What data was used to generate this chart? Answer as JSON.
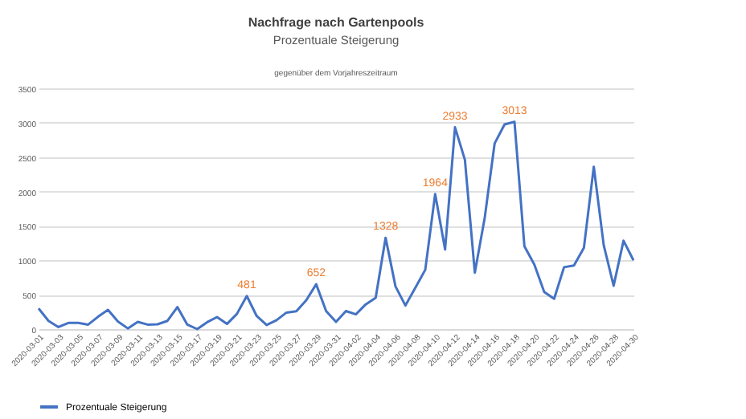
{
  "chart_data": {
    "type": "line",
    "title": "Nachfrage nach Gartenpools",
    "subtitle": "Prozentuale Steigerung",
    "annotations": [
      "gegenüber dem Vorjahreszeitraum"
    ],
    "x": [
      "2020-03-01",
      "2020-03-02",
      "2020-03-03",
      "2020-03-04",
      "2020-03-05",
      "2020-03-06",
      "2020-03-07",
      "2020-03-08",
      "2020-03-09",
      "2020-03-10",
      "2020-03-11",
      "2020-03-12",
      "2020-03-13",
      "2020-03-14",
      "2020-03-15",
      "2020-03-16",
      "2020-03-17",
      "2020-03-18",
      "2020-03-19",
      "2020-03-20",
      "2020-03-21",
      "2020-03-22",
      "2020-03-23",
      "2020-03-24",
      "2020-03-25",
      "2020-03-26",
      "2020-03-27",
      "2020-03-28",
      "2020-03-29",
      "2020-03-30",
      "2020-03-31",
      "2020-04-01",
      "2020-04-02",
      "2020-04-03",
      "2020-04-04",
      "2020-04-05",
      "2020-04-06",
      "2020-04-07",
      "2020-04-08",
      "2020-04-09",
      "2020-04-10",
      "2020-04-11",
      "2020-04-12",
      "2020-04-13",
      "2020-04-14",
      "2020-04-15",
      "2020-04-16",
      "2020-04-17",
      "2020-04-18",
      "2020-04-19",
      "2020-04-20",
      "2020-04-21",
      "2020-04-22",
      "2020-04-23",
      "2020-04-24",
      "2020-04-25",
      "2020-04-26",
      "2020-04-27",
      "2020-04-28",
      "2020-04-29",
      "2020-04-30"
    ],
    "series": [
      {
        "name": "Prozentuale Steigerung",
        "color": "#4472c4",
        "values": [
          300,
          120,
          30,
          90,
          90,
          65,
          180,
          280,
          110,
          10,
          105,
          65,
          70,
          120,
          320,
          65,
          0,
          100,
          175,
          75,
          220,
          481,
          190,
          60,
          130,
          240,
          260,
          420,
          652,
          263,
          104,
          263,
          215,
          360,
          455,
          1328,
          620,
          343,
          600,
          862,
          1964,
          1157,
          2933,
          2460,
          820,
          1620,
          2700,
          2975,
          3013,
          1205,
          940,
          540,
          440,
          900,
          925,
          1180,
          2360,
          1220,
          630,
          1285,
          1000
        ],
        "value_labels": [
          null,
          null,
          null,
          null,
          null,
          null,
          null,
          null,
          null,
          null,
          null,
          null,
          null,
          null,
          null,
          null,
          null,
          null,
          null,
          null,
          null,
          "481",
          null,
          null,
          null,
          null,
          null,
          null,
          "652",
          null,
          null,
          null,
          null,
          null,
          null,
          "1328",
          null,
          null,
          null,
          null,
          "1964",
          null,
          "2933",
          null,
          null,
          null,
          null,
          null,
          "3013",
          null,
          null,
          null,
          null,
          null,
          null,
          null,
          null,
          null,
          null,
          null,
          null
        ]
      }
    ],
    "xlim": [
      "2020-03-01",
      "2020-04-30"
    ],
    "xticks": [
      "2020-03-01",
      "2020-03-03",
      "2020-03-05",
      "2020-03-07",
      "2020-03-09",
      "2020-03-11",
      "2020-03-13",
      "2020-03-15",
      "2020-03-17",
      "2020-03-19",
      "2020-03-21",
      "2020-03-23",
      "2020-03-25",
      "2020-03-27",
      "2020-03-29",
      "2020-03-31",
      "2020-04-02",
      "2020-04-04",
      "2020-04-06",
      "2020-04-08",
      "2020-04-10",
      "2020-04-12",
      "2020-04-14",
      "2020-04-16",
      "2020-04-18",
      "2020-04-20",
      "2020-04-22",
      "2020-04-24",
      "2020-04-26",
      "2020-04-28",
      "2020-04-30"
    ],
    "ylim": [
      0,
      3500
    ],
    "yticks": [
      0,
      500,
      1000,
      1500,
      2000,
      2500,
      3000,
      3500
    ],
    "grid": "y",
    "legend": "bottom",
    "marker": "none",
    "line_style": "solid"
  }
}
